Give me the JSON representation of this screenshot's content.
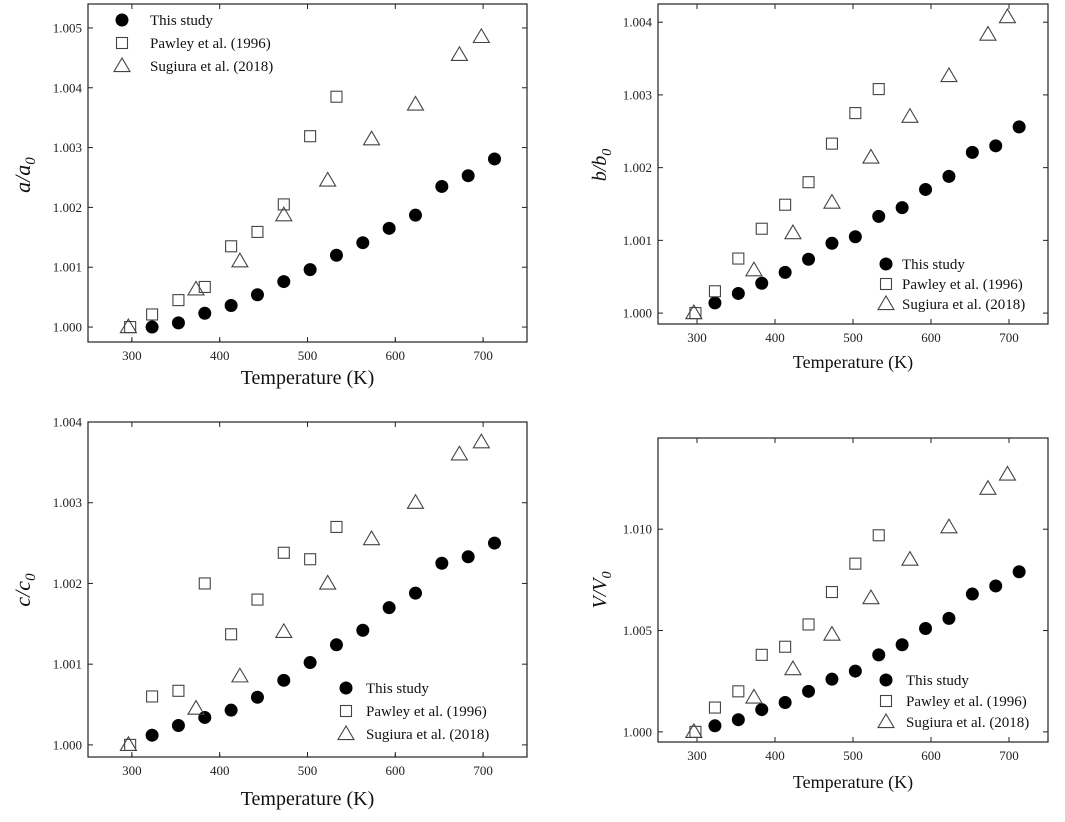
{
  "chart_data": [
    {
      "type": "scatter",
      "xlabel": "Temperature (K)",
      "ylabel": {
        "main": "a/a",
        "sub": "0"
      },
      "xlim": [
        250,
        750
      ],
      "ylim": [
        0.99975,
        1.0054
      ],
      "xticks": [
        300,
        400,
        500,
        600,
        700
      ],
      "xtick_labels": [
        "300",
        "400",
        "500",
        "600",
        "700"
      ],
      "yticks": [
        1.0,
        1.001,
        1.002,
        1.003,
        1.004,
        1.005
      ],
      "ytick_labels": [
        "1.000",
        "1.001",
        "1.002",
        "1.003",
        "1.004",
        "1.005"
      ],
      "legend_position": "top-left",
      "series": [
        {
          "name": "This study",
          "marker": "filled-circle",
          "x": [
            323,
            353,
            383,
            413,
            443,
            473,
            503,
            533,
            563,
            593,
            623,
            653,
            683,
            713
          ],
          "y": [
            1.0,
            1.00007,
            1.00023,
            1.00036,
            1.00054,
            1.00076,
            1.00096,
            1.0012,
            1.00141,
            1.00165,
            1.00187,
            1.00235,
            1.00253,
            1.00281
          ]
        },
        {
          "name": "Pawley et al. (1996)",
          "marker": "open-square",
          "x": [
            298,
            323,
            353,
            383,
            413,
            443,
            473,
            503,
            533
          ],
          "y": [
            1.0,
            1.00021,
            1.00045,
            1.00067,
            1.00135,
            1.00159,
            1.00205,
            1.00319,
            1.00385
          ]
        },
        {
          "name": "Sugiura et al. (2018)",
          "marker": "open-triangle",
          "x": [
            296,
            373,
            423,
            473,
            523,
            573,
            623,
            673,
            698
          ],
          "y": [
            1.0,
            1.00063,
            1.0011,
            1.00187,
            1.00245,
            1.00314,
            1.00372,
            1.00455,
            1.00485
          ]
        }
      ]
    },
    {
      "type": "scatter",
      "xlabel": "Temperature (K)",
      "ylabel": {
        "main": "b/b",
        "sub": "0"
      },
      "xlim": [
        250,
        750
      ],
      "ylim": [
        0.99985,
        1.00425
      ],
      "xticks": [
        300,
        400,
        500,
        600,
        700
      ],
      "xtick_labels": [
        "300",
        "400",
        "500",
        "600",
        "700"
      ],
      "yticks": [
        1.0,
        1.001,
        1.002,
        1.003,
        1.004
      ],
      "ytick_labels": [
        "1.000",
        "1.001",
        "1.002",
        "1.003",
        "1.004"
      ],
      "legend_position": "bottom-right",
      "series": [
        {
          "name": "This study",
          "marker": "filled-circle",
          "x": [
            323,
            353,
            383,
            413,
            443,
            473,
            503,
            533,
            563,
            593,
            623,
            653,
            683,
            713
          ],
          "y": [
            1.00014,
            1.00027,
            1.00041,
            1.00056,
            1.00074,
            1.00096,
            1.00105,
            1.00133,
            1.00145,
            1.0017,
            1.00188,
            1.00221,
            1.0023,
            1.00256
          ]
        },
        {
          "name": "Pawley et al. (1996)",
          "marker": "open-square",
          "x": [
            298,
            323,
            353,
            383,
            413,
            443,
            473,
            503,
            533
          ],
          "y": [
            1.0,
            1.0003,
            1.00075,
            1.00116,
            1.00149,
            1.0018,
            1.00233,
            1.00275,
            1.00308
          ]
        },
        {
          "name": "Sugiura et al. (2018)",
          "marker": "open-triangle",
          "x": [
            296,
            373,
            423,
            473,
            523,
            573,
            623,
            673,
            698
          ],
          "y": [
            1.0,
            1.00059,
            1.0011,
            1.00152,
            1.00214,
            1.0027,
            1.00326,
            1.00383,
            1.00407
          ]
        }
      ]
    },
    {
      "type": "scatter",
      "xlabel": "Temperature (K)",
      "ylabel": {
        "main": "c/c",
        "sub": "0"
      },
      "xlim": [
        250,
        750
      ],
      "ylim": [
        0.99985,
        1.004
      ],
      "xticks": [
        300,
        400,
        500,
        600,
        700
      ],
      "xtick_labels": [
        "300",
        "400",
        "500",
        "600",
        "700"
      ],
      "yticks": [
        1.0,
        1.001,
        1.002,
        1.003,
        1.004
      ],
      "ytick_labels": [
        "1.000",
        "1.001",
        "1.002",
        "1.003",
        "1.004"
      ],
      "legend_position": "bottom-right",
      "series": [
        {
          "name": "This study",
          "marker": "filled-circle",
          "x": [
            323,
            353,
            383,
            413,
            443,
            473,
            503,
            533,
            563,
            593,
            623,
            653,
            683,
            713
          ],
          "y": [
            1.00012,
            1.00024,
            1.00034,
            1.00043,
            1.00059,
            1.0008,
            1.00102,
            1.00124,
            1.00142,
            1.0017,
            1.00188,
            1.00225,
            1.00233,
            1.0025
          ]
        },
        {
          "name": "Pawley et al. (1996)",
          "marker": "open-square",
          "x": [
            298,
            323,
            353,
            383,
            413,
            443,
            473,
            503,
            533
          ],
          "y": [
            1.0,
            1.0006,
            1.00067,
            1.002,
            1.00137,
            1.0018,
            1.00238,
            1.0023,
            1.0027
          ]
        },
        {
          "name": "Sugiura et al. (2018)",
          "marker": "open-triangle",
          "x": [
            296,
            373,
            423,
            473,
            523,
            573,
            623,
            673,
            698
          ],
          "y": [
            1.0,
            1.00045,
            1.00085,
            1.0014,
            1.002,
            1.00255,
            1.003,
            1.0036,
            1.00375
          ]
        }
      ]
    },
    {
      "type": "scatter",
      "xlabel": "Temperature (K)",
      "ylabel": {
        "main": "V/V",
        "sub": "0"
      },
      "xlim": [
        250,
        750
      ],
      "ylim": [
        0.9995,
        1.0145
      ],
      "xticks": [
        300,
        400,
        500,
        600,
        700
      ],
      "xtick_labels": [
        "300",
        "400",
        "500",
        "600",
        "700"
      ],
      "yticks": [
        1.0,
        1.005,
        1.01
      ],
      "ytick_labels": [
        "1.000",
        "1.005",
        "1.010"
      ],
      "legend_position": "bottom-right",
      "series": [
        {
          "name": "This study",
          "marker": "filled-circle",
          "x": [
            323,
            353,
            383,
            413,
            443,
            473,
            503,
            533,
            563,
            593,
            623,
            653,
            683,
            713
          ],
          "y": [
            1.0003,
            1.0006,
            1.0011,
            1.00145,
            1.002,
            1.0026,
            1.003,
            1.0038,
            1.0043,
            1.0051,
            1.0056,
            1.0068,
            1.0072,
            1.0079
          ]
        },
        {
          "name": "Pawley et al. (1996)",
          "marker": "open-square",
          "x": [
            298,
            323,
            353,
            383,
            413,
            443,
            473,
            503,
            533
          ],
          "y": [
            1.0,
            1.0012,
            1.002,
            1.0038,
            1.0042,
            1.0053,
            1.0069,
            1.0083,
            1.0097
          ]
        },
        {
          "name": "Sugiura et al. (2018)",
          "marker": "open-triangle",
          "x": [
            296,
            373,
            423,
            473,
            523,
            573,
            623,
            673,
            698
          ],
          "y": [
            1.0,
            1.0017,
            1.0031,
            1.0048,
            1.0066,
            1.0085,
            1.0101,
            1.012,
            1.0127
          ]
        }
      ]
    }
  ]
}
